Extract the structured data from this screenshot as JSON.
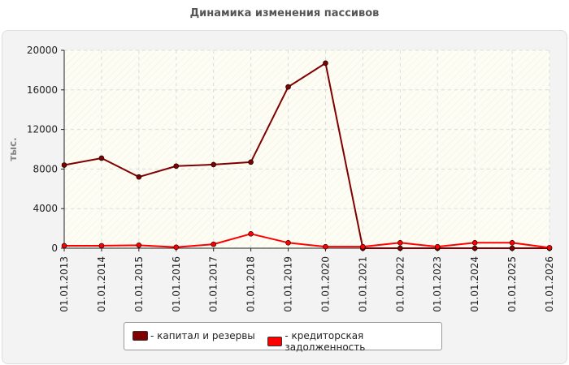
{
  "page": {
    "title": "Динамика изменения пассивов"
  },
  "colors": {
    "series_1": "#800000",
    "series_2": "#ff0000",
    "panel_bg": "#f3f3f3",
    "grid": "#dcdcdc"
  },
  "chart_data": {
    "type": "line",
    "title": "Динамика изменения пассивов",
    "ylabel": "тыс.",
    "xlabel": "",
    "ylim": [
      0,
      20000
    ],
    "yticks": [
      0,
      4000,
      8000,
      12000,
      16000,
      20000
    ],
    "grid": true,
    "legend_position": "bottom",
    "categories": [
      "01.01.2013",
      "01.01.2014",
      "01.01.2015",
      "01.01.2016",
      "01.01.2017",
      "01.01.2018",
      "01.01.2019",
      "01.01.2020",
      "01.01.2021",
      "01.01.2022",
      "01.01.2023",
      "01.01.2024",
      "01.01.2025",
      "01.01.2026"
    ],
    "series": [
      {
        "name": "- капитал и резервы",
        "color": "#800000",
        "values": [
          8400,
          9100,
          7200,
          8300,
          8450,
          8700,
          16300,
          18700,
          0,
          0,
          0,
          0,
          0,
          0
        ]
      },
      {
        "name": "- кредиторская задолженность",
        "color": "#ff0000",
        "values": [
          250,
          250,
          300,
          100,
          400,
          1450,
          550,
          150,
          150,
          550,
          150,
          550,
          550,
          50
        ]
      }
    ]
  }
}
